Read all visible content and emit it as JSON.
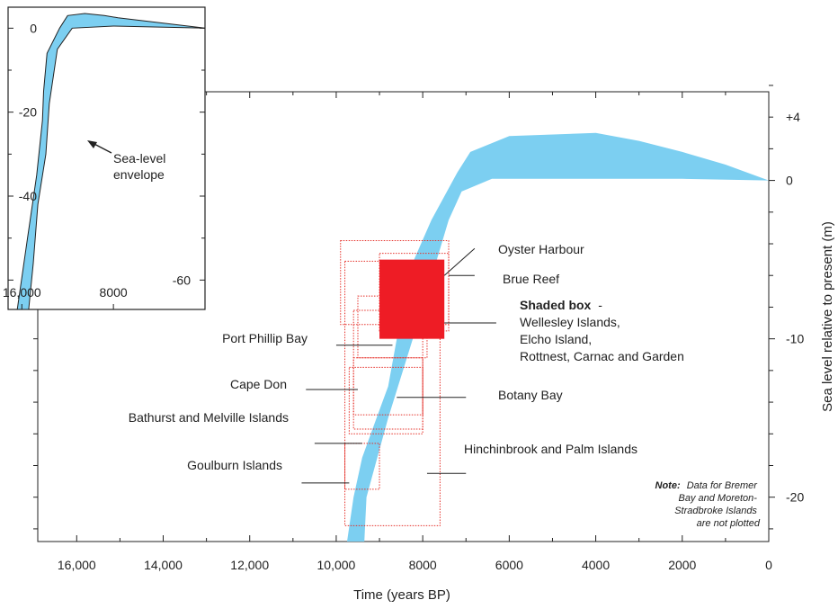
{
  "chart_data": [
    {
      "type": "area",
      "title": "",
      "xlabel": "Time (years BP)",
      "ylabel": "Sea level relative to present (m)",
      "xlim": [
        16900,
        0
      ],
      "ylim": [
        -22.8,
        5.6
      ],
      "x_ticks": [
        {
          "value": 16000,
          "label": "16,000"
        },
        {
          "value": 14000,
          "label": "14,000"
        },
        {
          "value": 12000,
          "label": "12,000"
        },
        {
          "value": 10000,
          "label": "10,000"
        },
        {
          "value": 8000,
          "label": "8000"
        },
        {
          "value": 6000,
          "label": "6000"
        },
        {
          "value": 4000,
          "label": "4000"
        },
        {
          "value": 2000,
          "label": "2000"
        },
        {
          "value": 0,
          "label": "0"
        }
      ],
      "y_ticks": [
        {
          "value": 4,
          "label": "+4"
        },
        {
          "value": 0,
          "label": "0"
        },
        {
          "value": -10,
          "label": "-10"
        },
        {
          "value": -20,
          "label": "-20"
        }
      ],
      "envelope": {
        "color": "#7ccff1",
        "upper": [
          [
            9750,
            -22.8
          ],
          [
            9600,
            -20
          ],
          [
            9400,
            -17.5
          ],
          [
            9200,
            -16
          ],
          [
            9000,
            -14.5
          ],
          [
            8800,
            -13
          ],
          [
            8600,
            -10
          ],
          [
            8400,
            -7
          ],
          [
            8200,
            -5
          ],
          [
            7800,
            -2.5
          ],
          [
            7200,
            0.5
          ],
          [
            6900,
            1.8
          ],
          [
            6000,
            2.8
          ],
          [
            4000,
            3
          ],
          [
            3000,
            2.5
          ],
          [
            2000,
            1.8
          ],
          [
            1000,
            1
          ],
          [
            0,
            0
          ]
        ],
        "lower": [
          [
            9350,
            -22.8
          ],
          [
            9300,
            -20
          ],
          [
            9100,
            -18
          ],
          [
            8800,
            -15
          ],
          [
            8400,
            -11.5
          ],
          [
            8000,
            -8
          ],
          [
            7400,
            -2.5
          ],
          [
            7100,
            -0.7
          ],
          [
            6400,
            0.1
          ],
          [
            4000,
            0.1
          ],
          [
            2000,
            0.1
          ],
          [
            0,
            0
          ]
        ]
      },
      "sites": [
        {
          "name": "Oyster Harbour",
          "x0": 9900,
          "x1": 7400,
          "y0": -3.8,
          "y1": -9.1,
          "anchor": [
            7500,
            -6.0
          ],
          "lead_end": [
            6800,
            -4.3
          ]
        },
        {
          "name": "Brue Reef",
          "x0": 9000,
          "x1": 7400,
          "y0": -4.6,
          "y1": -9.5,
          "anchor": [
            7400,
            -6.0
          ],
          "lead_end": [
            6800,
            -6.0
          ]
        },
        {
          "name": "Port Phillip Bay",
          "x0": 9500,
          "x1": 7900,
          "y0": -7.3,
          "y1": -11.2,
          "anchor": [
            8700,
            -10.4
          ],
          "lead_end": [
            10000,
            -10.4
          ]
        },
        {
          "name": "Cape Don",
          "x0": 9600,
          "x1": 8000,
          "y0": -8.2,
          "y1": -14.8,
          "anchor": [
            9500,
            -13.2
          ],
          "lead_end": [
            10700,
            -13.2
          ]
        },
        {
          "name": "Botany Bay",
          "x0": 9600,
          "x1": 8000,
          "y0": -11.2,
          "y1": -15.7,
          "anchor": [
            8600,
            -13.7
          ],
          "lead_end": [
            7000,
            -13.7
          ]
        },
        {
          "name": "Bathurst and Melville Islands",
          "x0": 9700,
          "x1": 8000,
          "y0": -11.8,
          "y1": -16.0,
          "anchor": [
            9400,
            -16.6
          ],
          "lead_end": [
            10500,
            -16.6
          ]
        },
        {
          "name": "Hinchinbrook and Palm Islands",
          "x0": 9800,
          "x1": 7600,
          "y0": -5.1,
          "y1": -21.8,
          "anchor": [
            7900,
            -18.5
          ],
          "lead_end": [
            7000,
            -18.5
          ]
        },
        {
          "name": "Goulburn Islands",
          "x0": 9800,
          "x1": 9000,
          "y0": -16.6,
          "y1": -19.5,
          "anchor": [
            9700,
            -19.1
          ],
          "lead_end": [
            10800,
            -19.1
          ]
        }
      ],
      "shaded_box": {
        "x0": 9000,
        "x1": 7500,
        "y0": -5.0,
        "y1": -10.0,
        "color": "#ee1c25",
        "anchor": [
          7500,
          -9.0
        ],
        "lead_end": [
          6300,
          -9.0
        ],
        "title": "Shaded box",
        "text": [
          "-",
          "Wellesley Islands,",
          "Elcho Island,",
          "Rottnest, Carnac and Garden"
        ]
      },
      "site_box_color": "#e5312a",
      "note": {
        "bold": "Note:",
        "lines": [
          "Data for Bremer",
          "Bay and Moreton-",
          "Stradbroke Islands",
          "are not plotted"
        ]
      }
    },
    {
      "type": "area",
      "title": "",
      "xlim": [
        17200,
        0
      ],
      "ylim": [
        -67,
        5
      ],
      "x_ticks": [
        {
          "value": 16000,
          "label": "16,000"
        },
        {
          "value": 8000,
          "label": "8000"
        }
      ],
      "y_ticks": [
        {
          "value": 0,
          "label": "0"
        },
        {
          "value": -20,
          "label": "-20"
        },
        {
          "value": -40,
          "label": "-40"
        },
        {
          "value": -60,
          "label": "-60"
        }
      ],
      "envelope": {
        "color": "#7ccff1",
        "upper": [
          [
            16400,
            -67
          ],
          [
            15500,
            -50
          ],
          [
            14700,
            -35
          ],
          [
            14200,
            -22
          ],
          [
            14100,
            -15
          ],
          [
            13800,
            -6
          ],
          [
            12700,
            0
          ],
          [
            12000,
            3
          ],
          [
            10500,
            3.5
          ],
          [
            8800,
            3
          ],
          [
            7600,
            2.5
          ],
          [
            0,
            0
          ]
        ],
        "lower": [
          [
            15400,
            -67
          ],
          [
            15000,
            -56
          ],
          [
            14600,
            -42
          ],
          [
            13900,
            -30
          ],
          [
            13600,
            -18
          ],
          [
            12900,
            -5
          ],
          [
            11600,
            0
          ],
          [
            8000,
            0.5
          ],
          [
            0,
            0
          ]
        ]
      },
      "annotation": {
        "lines": [
          "Sea-level",
          "envelope"
        ],
        "target": [
          14000,
          -25
        ]
      }
    }
  ]
}
